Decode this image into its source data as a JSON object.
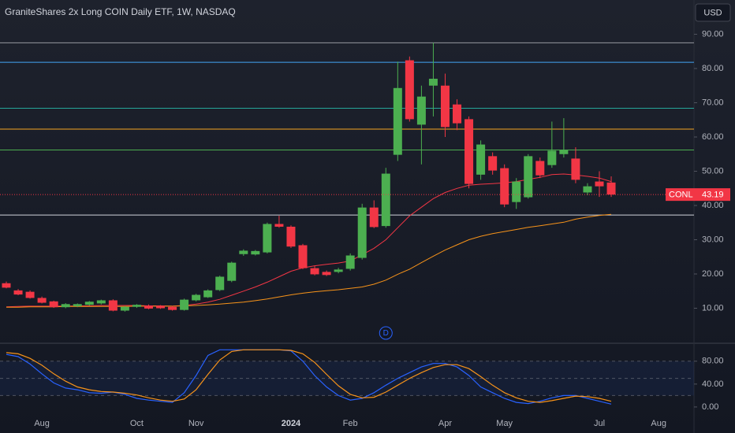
{
  "chart_data": [
    {
      "type": "candlestick",
      "title": "GraniteShares 2x Long COIN Daily ETF, 1W, NASDAQ",
      "currency": "USD",
      "categories": [
        null,
        null,
        null,
        "Aug",
        null,
        null,
        null,
        null,
        null,
        null,
        null,
        "Oct",
        null,
        null,
        null,
        null,
        "Nov",
        null,
        null,
        null,
        null,
        null,
        null,
        null,
        "2024",
        null,
        null,
        null,
        null,
        "Feb",
        null,
        null,
        null,
        null,
        null,
        null,
        null,
        "Apr",
        null,
        null,
        null,
        null,
        "May",
        null,
        null,
        null,
        null,
        null,
        null,
        null,
        "Jul",
        null,
        null,
        null,
        null,
        "Aug"
      ],
      "open": [
        17.3,
        15.2,
        14.8,
        13.0,
        12.0,
        10.3,
        10.6,
        11.0,
        11.4,
        12.3,
        9.3,
        10.4,
        10.8,
        10.7,
        10.4,
        9.5,
        12.3,
        13.2,
        15.3,
        18.0,
        25.8,
        25.7,
        26.3,
        34.6,
        33.8,
        28.4,
        21.7,
        20.6,
        20.6,
        21.5,
        24.7,
        39.4,
        34.0,
        54.8,
        82.4,
        63.6,
        75.0,
        75.0,
        69.5,
        65.2,
        49.0,
        54.4,
        50.9,
        41.0,
        42.4,
        53.0,
        51.8,
        55.0,
        53.7,
        43.8,
        47.0,
        46.7,
        null,
        null,
        null,
        null
      ],
      "high": [
        17.8,
        15.6,
        15.2,
        13.4,
        12.2,
        11.5,
        11.4,
        12.1,
        12.5,
        12.6,
        10.6,
        11.2,
        11.1,
        10.9,
        10.7,
        12.8,
        14.2,
        15.5,
        19.5,
        23.6,
        27.2,
        27.0,
        35.0,
        37.0,
        34.2,
        28.8,
        22.4,
        21.0,
        21.8,
        26.0,
        40.5,
        41.5,
        51.0,
        82.0,
        83.5,
        75.0,
        87.5,
        78.5,
        71.0,
        66.0,
        59.0,
        55.5,
        52.0,
        48.0,
        55.0,
        54.0,
        64.5,
        65.5,
        57.0,
        46.5,
        50.0,
        48.5,
        null,
        null,
        null,
        null
      ],
      "low": [
        15.8,
        13.8,
        12.8,
        11.4,
        10.1,
        10.0,
        10.3,
        10.8,
        11.1,
        9.1,
        9.0,
        10.1,
        9.7,
        9.8,
        9.3,
        9.3,
        12.0,
        13.0,
        15.0,
        17.6,
        25.3,
        25.4,
        26.0,
        33.5,
        27.6,
        21.4,
        19.6,
        19.4,
        20.2,
        21.0,
        24.2,
        33.4,
        33.5,
        53.0,
        64.5,
        52.0,
        66.0,
        60.0,
        62.0,
        45.0,
        47.5,
        49.0,
        39.5,
        39.0,
        42.0,
        48.0,
        51.0,
        54.0,
        46.5,
        43.0,
        42.5,
        42.5,
        null,
        null,
        null,
        null
      ],
      "close": [
        16.0,
        14.0,
        13.0,
        11.6,
        10.3,
        11.2,
        11.2,
        11.9,
        12.3,
        9.3,
        10.4,
        11.0,
        9.9,
        10.0,
        9.5,
        12.5,
        13.9,
        15.2,
        19.2,
        23.3,
        26.8,
        26.7,
        34.6,
        33.8,
        28.0,
        21.7,
        19.9,
        19.7,
        21.3,
        25.4,
        39.4,
        33.7,
        49.3,
        74.3,
        65.2,
        71.8,
        77.0,
        62.9,
        64.0,
        46.3,
        57.8,
        50.2,
        40.3,
        47.0,
        54.4,
        48.8,
        56.0,
        56.2,
        47.5,
        45.6,
        45.6,
        43.19,
        null,
        null,
        null,
        null
      ],
      "up_color": "#4caf50",
      "down_color": "#f23645",
      "overlays": [
        {
          "color": "#f23645",
          "values": [
            10.4,
            10.5,
            10.6,
            10.6,
            10.6,
            10.6,
            10.7,
            10.7,
            10.8,
            10.8,
            10.8,
            10.8,
            10.7,
            10.7,
            10.6,
            10.8,
            11.2,
            11.8,
            12.6,
            13.8,
            15,
            16.2,
            17.6,
            19.2,
            20.8,
            21.8,
            22.4,
            22.8,
            23.2,
            23.8,
            25.6,
            27.5,
            30,
            33.5,
            37,
            39.5,
            42,
            43.8,
            45,
            45.9,
            46.2,
            46.4,
            46.6,
            47,
            47.6,
            48.2,
            49,
            49.2,
            48.9,
            48.5,
            48,
            47,
            null,
            null,
            null,
            null
          ]
        },
        {
          "color": "#f7931a",
          "values": [
            10.3,
            10.3,
            10.4,
            10.4,
            10.4,
            10.5,
            10.5,
            10.5,
            10.5,
            10.5,
            10.5,
            10.6,
            10.6,
            10.6,
            10.6,
            10.7,
            10.8,
            11,
            11.2,
            11.5,
            11.8,
            12.2,
            12.7,
            13.3,
            13.9,
            14.4,
            14.8,
            15.1,
            15.4,
            15.8,
            16.2,
            17,
            18.2,
            19.9,
            21.4,
            23.3,
            25.2,
            27,
            28.5,
            30,
            31,
            31.8,
            32.4,
            33,
            33.6,
            34.1,
            34.6,
            35.1,
            36,
            36.6,
            37.1,
            37.4,
            null,
            null,
            null,
            null
          ]
        }
      ],
      "levels": [
        {
          "value": 87.5,
          "color": "#9598a1"
        },
        {
          "value": 81.8,
          "color": "#42a5f5"
        },
        {
          "value": 68.4,
          "color": "#26a69a"
        },
        {
          "value": 62.3,
          "color": "#f5a623"
        },
        {
          "value": 56.2,
          "color": "#4caf50"
        },
        {
          "value": 37.2,
          "color": "#d1d4dc"
        }
      ],
      "last_price": {
        "label": "CONL",
        "value": 43.19,
        "color": "#f23645"
      },
      "markers": [
        {
          "label": "D",
          "category_index": 32,
          "color": "#2962ff"
        }
      ],
      "ylim": [
        0,
        100
      ],
      "yticks": [
        {
          "value": 10,
          "label": "10.00"
        },
        {
          "value": 20,
          "label": "20.00"
        },
        {
          "value": 30,
          "label": "30.00"
        },
        {
          "value": 40,
          "label": "40.00"
        },
        {
          "value": 50,
          "label": "50.00"
        },
        {
          "value": 60,
          "label": "60.00"
        },
        {
          "value": 70,
          "label": "70.00"
        },
        {
          "value": 80,
          "label": "80.00"
        },
        {
          "value": 90,
          "label": "90.00"
        }
      ],
      "grid": false
    },
    {
      "type": "line",
      "series": [
        {
          "color": "#2962ff",
          "values": [
            92,
            88,
            75,
            58,
            42,
            33,
            30,
            25,
            24,
            26,
            22,
            15,
            12,
            10,
            8,
            25,
            55,
            90,
            100,
            100,
            100,
            100,
            100,
            100,
            98,
            80,
            55,
            35,
            20,
            12,
            15,
            25,
            38,
            50,
            60,
            70,
            76,
            76,
            70,
            55,
            35,
            25,
            15,
            8,
            6,
            10,
            16,
            20,
            20,
            15,
            10,
            5,
            null,
            null,
            null,
            null
          ]
        },
        {
          "color": "#f7931a",
          "values": [
            95,
            93,
            85,
            73,
            58,
            45,
            35,
            30,
            27,
            26,
            24,
            21,
            16,
            12,
            10,
            14,
            30,
            57,
            82,
            97,
            100,
            100,
            100,
            100,
            99,
            93,
            78,
            57,
            37,
            22,
            16,
            17,
            26,
            38,
            50,
            60,
            69,
            74,
            74,
            67,
            53,
            38,
            25,
            16,
            10,
            8,
            11,
            15,
            19,
            18,
            15,
            10,
            null,
            null,
            null,
            null
          ]
        }
      ],
      "band": [
        20,
        80
      ],
      "hlines": [
        80,
        50,
        20
      ],
      "ylim": [
        -18,
        110
      ],
      "yticks": [
        {
          "value": 0,
          "label": "0.00"
        },
        {
          "value": 40,
          "label": "40.00"
        },
        {
          "value": 80,
          "label": "80.00"
        }
      ]
    }
  ]
}
